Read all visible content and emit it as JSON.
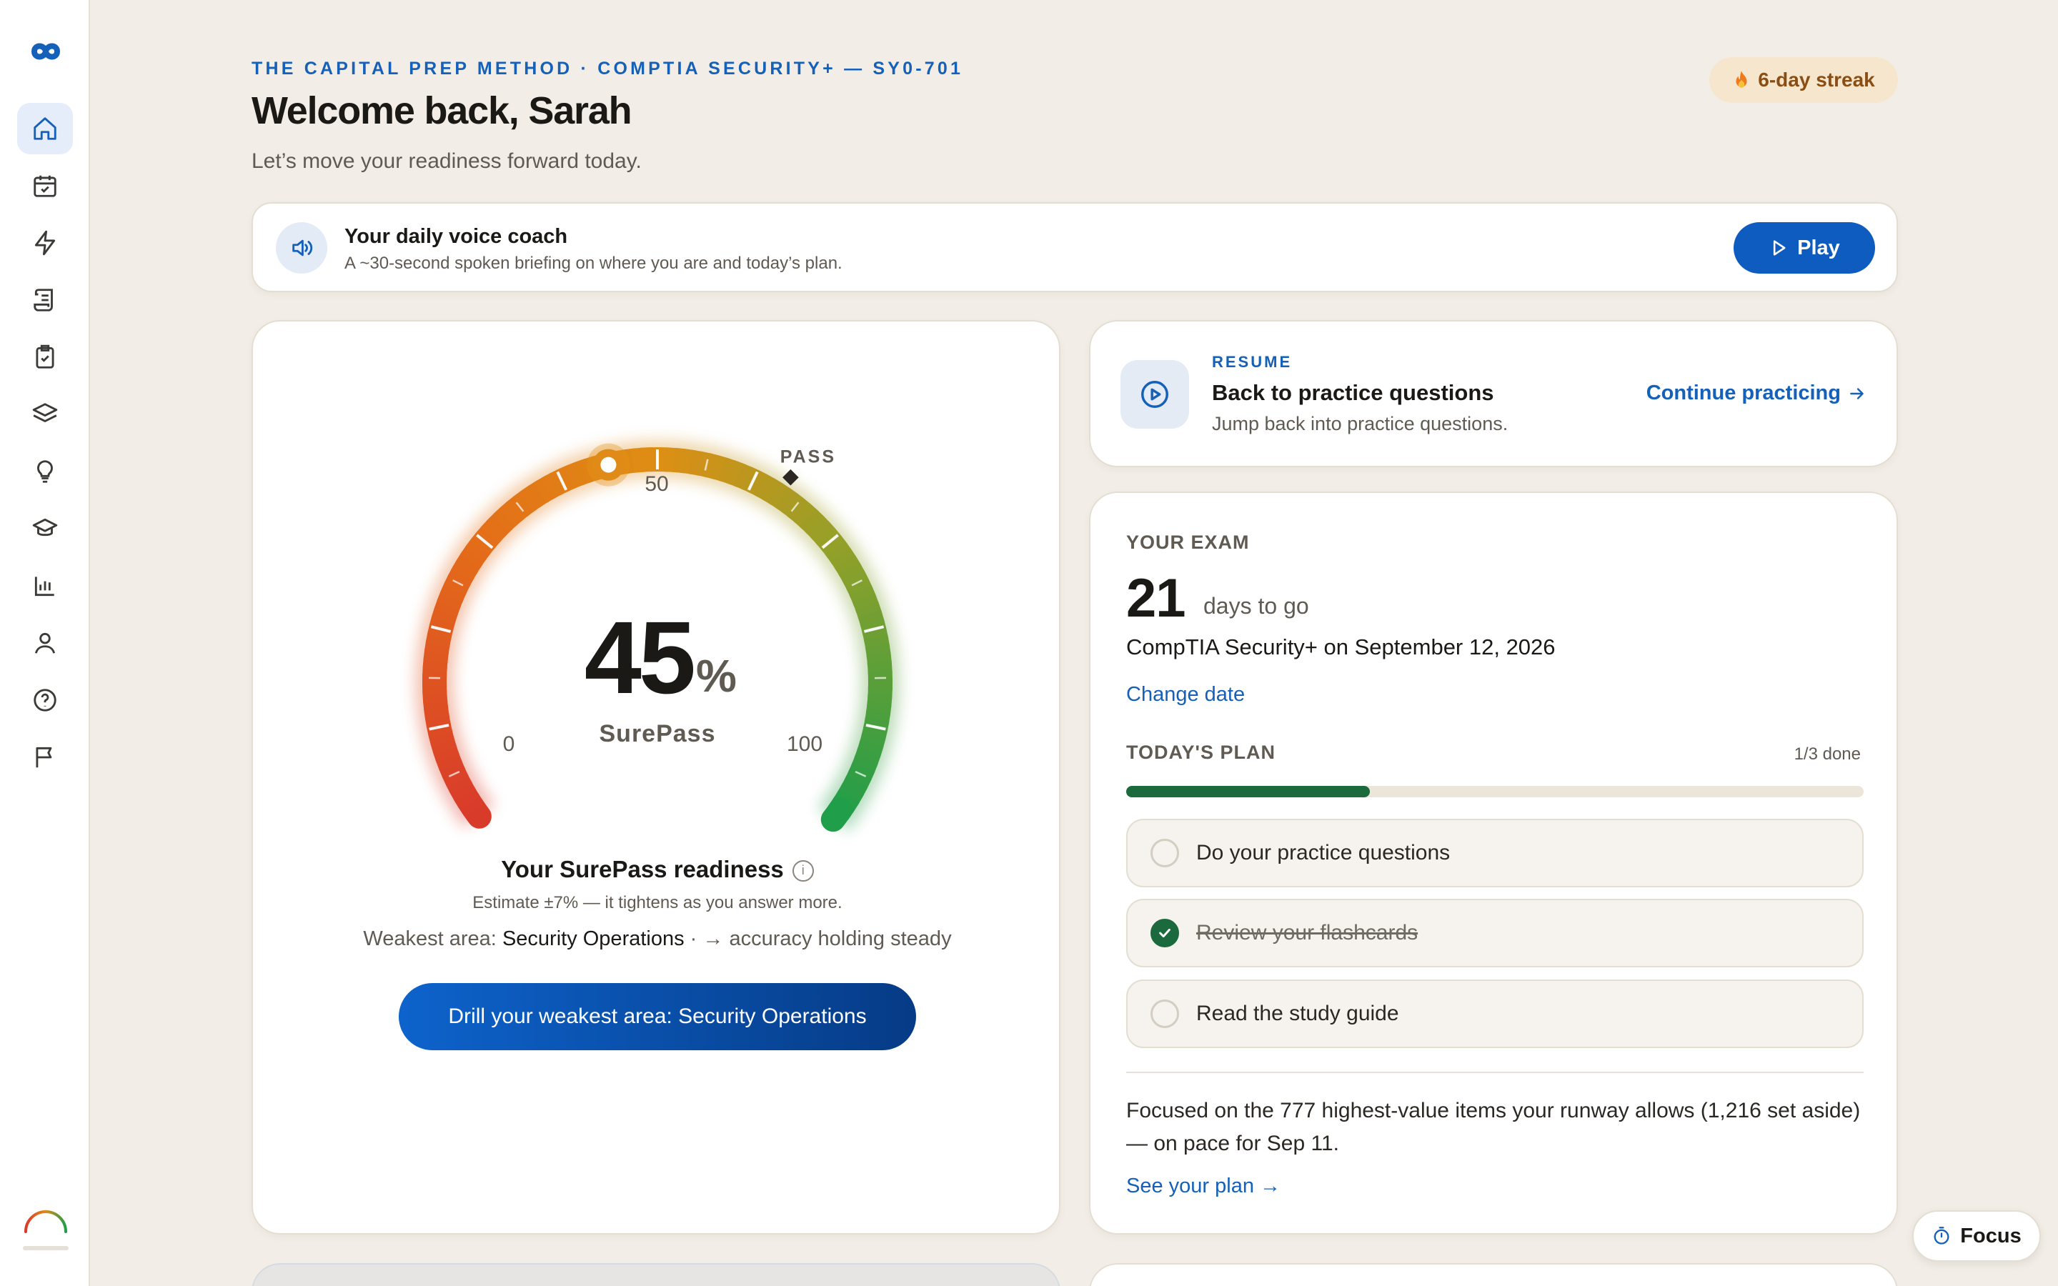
{
  "colors": {
    "accent": "#0f5cc0",
    "background": "#f2eee7",
    "success": "#1a6a3e",
    "streak_bg": "#f5e6cd"
  },
  "sidebar": {
    "items": [
      {
        "icon": "home-icon",
        "active": true
      },
      {
        "icon": "calendar-check-icon"
      },
      {
        "icon": "lightning-icon"
      },
      {
        "icon": "scroll-icon"
      },
      {
        "icon": "clipboard-check-icon"
      },
      {
        "icon": "layers-icon"
      },
      {
        "icon": "lightbulb-icon"
      },
      {
        "icon": "graduation-cap-icon"
      },
      {
        "icon": "bar-chart-icon"
      },
      {
        "icon": "user-icon"
      },
      {
        "icon": "help-circle-icon"
      },
      {
        "icon": "flag-icon"
      }
    ]
  },
  "header": {
    "eyebrow": "THE CAPITAL PREP METHOD · COMPTIA SECURITY+ — SY0-701",
    "title": "Welcome back, Sarah",
    "subtitle": "Let’s move your readiness forward today.",
    "streak": "6-day streak"
  },
  "voice_coach": {
    "title": "Your daily voice coach",
    "description": "A ~30-second spoken briefing on where you are and today’s plan.",
    "play_label": "Play"
  },
  "readiness": {
    "score": 45,
    "score_text": "45",
    "unit": "%",
    "brand": "SurePass",
    "min_label": "0",
    "mid_label": "50",
    "max_label": "100",
    "pass_label": "PASS",
    "pass_mark": 63,
    "title": "Your SurePass readiness",
    "estimate": "Estimate ±7% — it tightens as you answer more.",
    "weak_prefix": "Weakest area: ",
    "weak_area": "Security Operations",
    "weak_suffix": " · → accuracy holding steady",
    "drill_button": "Drill your weakest area: Security Operations"
  },
  "resume": {
    "eyebrow": "RESUME",
    "title": "Back to practice questions",
    "description": "Jump back into practice questions.",
    "link": "Continue practicing"
  },
  "exam": {
    "label": "YOUR EXAM",
    "days": "21",
    "days_label": "days to go",
    "line": "CompTIA Security+ on September 12, 2026",
    "change_date": "Change date",
    "plan_label": "TODAY'S PLAN",
    "plan_done": "1/3 done",
    "progress": 0.33,
    "tasks": [
      {
        "label": "Do your practice questions",
        "done": false
      },
      {
        "label": "Review your flashcards",
        "done": true
      },
      {
        "label": "Read the study guide",
        "done": false
      }
    ],
    "focus_text": "Focused on the 777 highest-value items your runway allows (1,216 set aside) — on pace for Sep 11.",
    "see_plan": "See your plan →"
  },
  "focus_button": "Focus"
}
